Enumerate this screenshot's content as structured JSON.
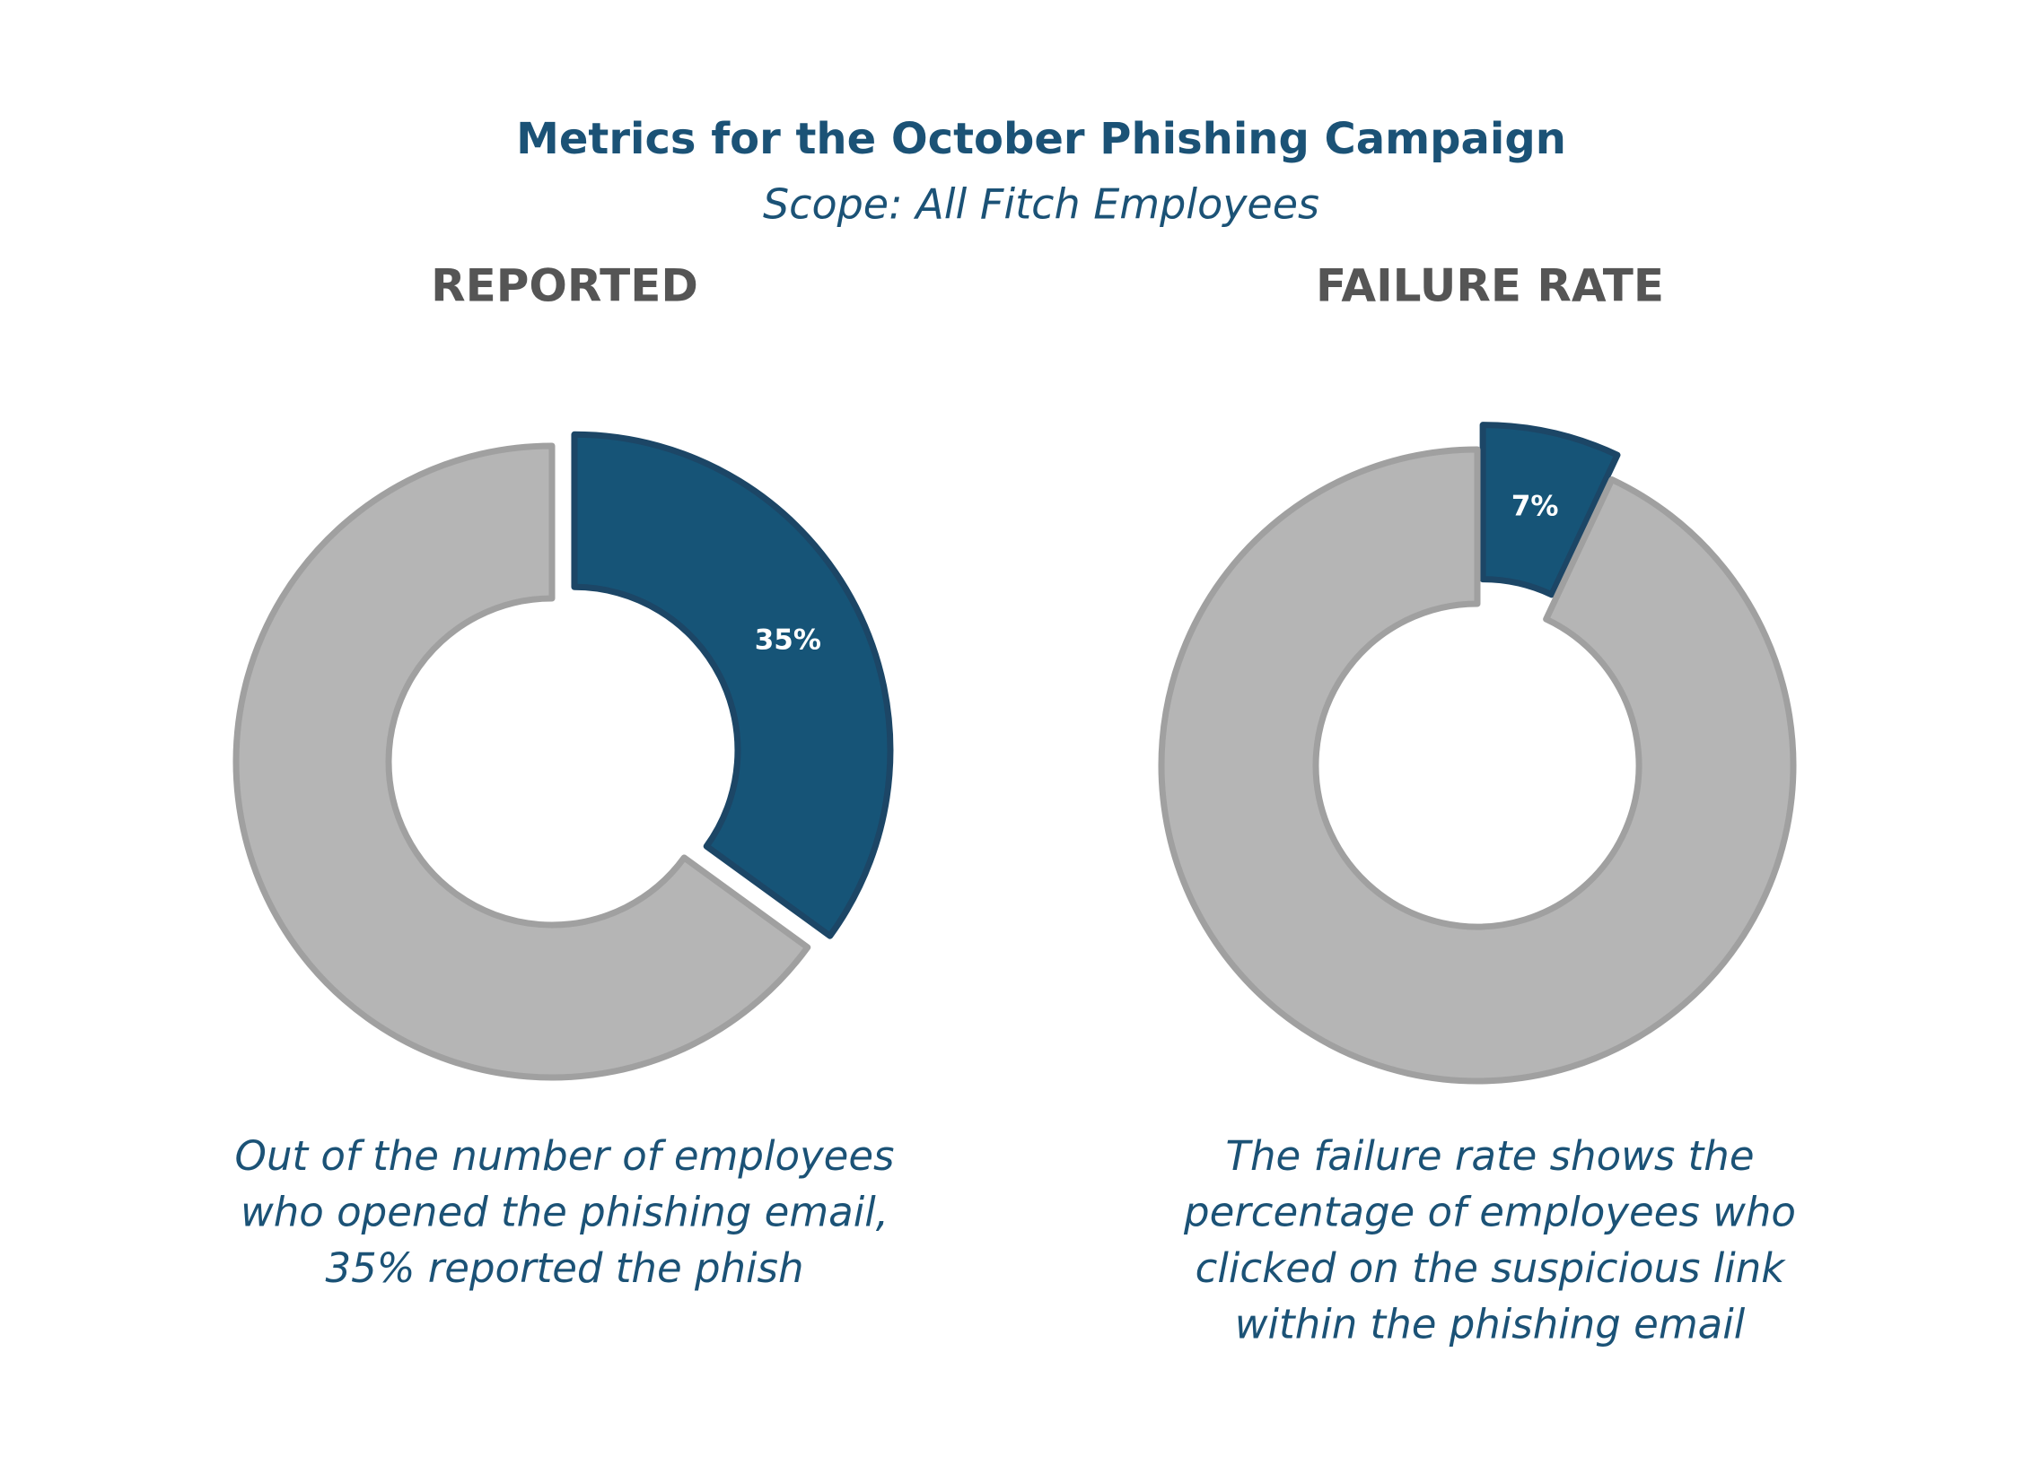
{
  "header": {
    "title": "Metrics for the October Phishing Campaign",
    "subtitle": "Scope: All Fitch Employees"
  },
  "chart_data": [
    {
      "type": "donut",
      "title": "REPORTED",
      "values": [
        35,
        65
      ],
      "value_labels": [
        "35%",
        null
      ],
      "colors": [
        "#165477",
        "#b5b5b5"
      ],
      "caption": [
        "Out of the number of employees",
        "who opened the phishing email,",
        "35% reported the phish"
      ]
    },
    {
      "type": "donut",
      "title": "FAILURE RATE",
      "values": [
        7,
        93
      ],
      "value_labels": [
        "7%",
        null
      ],
      "colors": [
        "#165477",
        "#b5b5b5"
      ],
      "caption": [
        "The failure rate shows the",
        "percentage of employees who",
        "clicked on the suspicious link",
        "within the phishing email"
      ]
    }
  ]
}
